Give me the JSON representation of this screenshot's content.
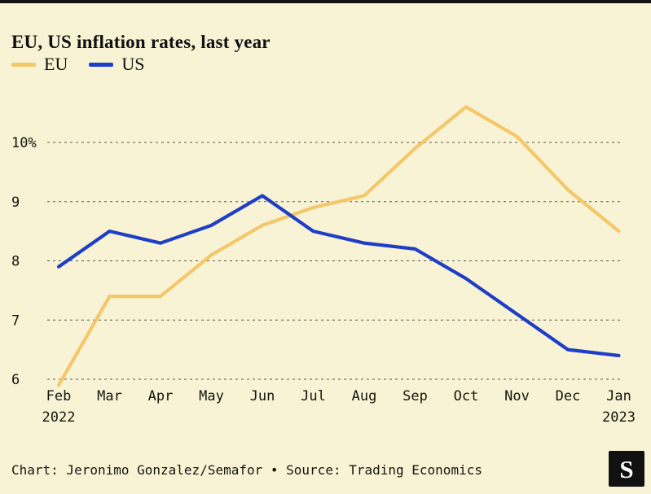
{
  "header": {
    "title": "EU, US inflation rates, last year"
  },
  "chart_data": {
    "type": "line",
    "title": "EU, US inflation rates, last year",
    "categories": [
      {
        "label": "Feb",
        "sublabel": "2022"
      },
      {
        "label": "Mar"
      },
      {
        "label": "Apr"
      },
      {
        "label": "May"
      },
      {
        "label": "Jun"
      },
      {
        "label": "Jul"
      },
      {
        "label": "Aug"
      },
      {
        "label": "Sep"
      },
      {
        "label": "Oct"
      },
      {
        "label": "Nov"
      },
      {
        "label": "Dec"
      },
      {
        "label": "Jan",
        "sublabel": "2023"
      }
    ],
    "series": [
      {
        "name": "EU",
        "color": "#f3c76a",
        "values": [
          5.9,
          7.4,
          7.4,
          8.1,
          8.6,
          8.9,
          9.1,
          9.9,
          10.6,
          10.1,
          9.2,
          8.5
        ]
      },
      {
        "name": "US",
        "color": "#1e3ec8",
        "values": [
          7.9,
          8.5,
          8.3,
          8.6,
          9.1,
          8.5,
          8.3,
          8.2,
          7.7,
          7.1,
          6.5,
          6.4
        ]
      }
    ],
    "yticks": [
      {
        "value": 6,
        "label": "6"
      },
      {
        "value": 7,
        "label": "7"
      },
      {
        "value": 8,
        "label": "8"
      },
      {
        "value": 9,
        "label": "9"
      },
      {
        "value": 10,
        "label": "10%"
      }
    ],
    "ylim": [
      5.85,
      10.75
    ],
    "xlabel": "",
    "ylabel": "",
    "grid": "horizontal dashed",
    "legend_position": "top-left"
  },
  "footer": {
    "credit": "Chart: Jeronimo Gonzalez/Semafor • Source: Trading Economics",
    "logo_letter": "S"
  },
  "colors": {
    "background": "#f9f3d5",
    "text": "#15150f",
    "grid": "#55544a",
    "top_bar": "#111111",
    "eu_line": "#f3c76a",
    "us_line": "#1e3ec8",
    "logo_bg": "#111111",
    "logo_fg": "#ffffff"
  }
}
